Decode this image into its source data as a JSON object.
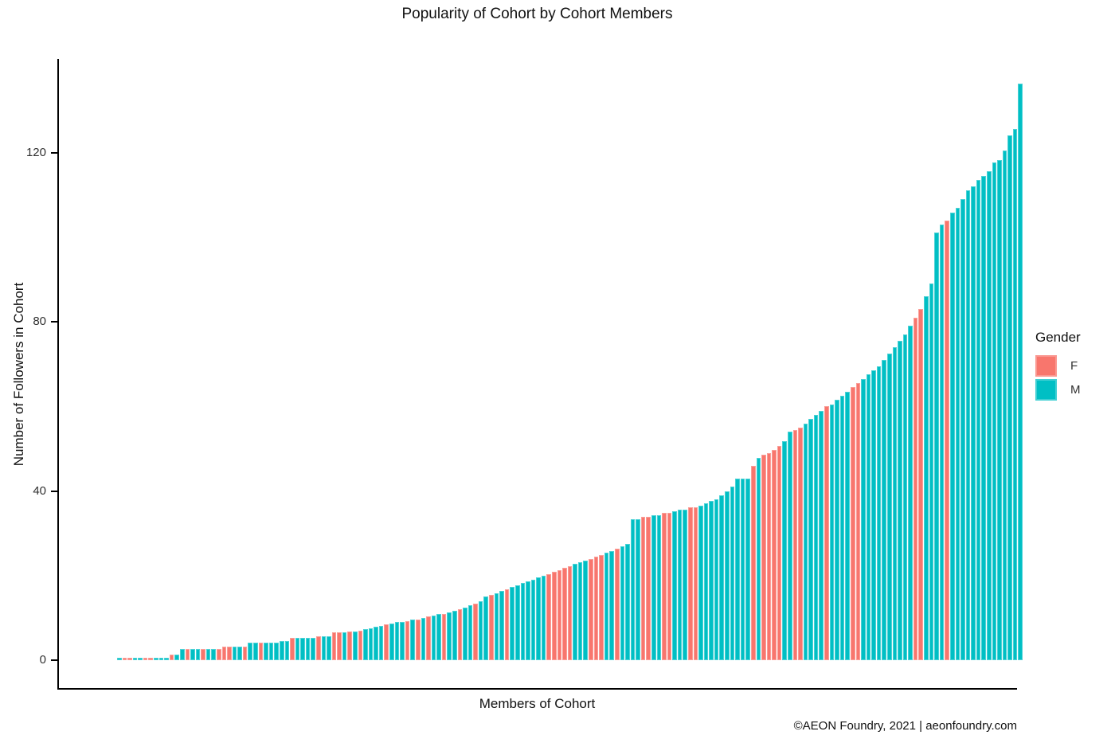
{
  "title": "Popularity of Cohort by Cohort Members",
  "caption": "©AEON Foundry, 2021 | aeonfoundry.com",
  "legend": {
    "title": "Gender",
    "items": [
      {
        "label": "F",
        "color": "#F8766D"
      },
      {
        "label": "M",
        "color": "#00BFC4"
      }
    ]
  },
  "chart_data": {
    "type": "bar",
    "title": "Popularity of Cohort by Cohort Members",
    "xlabel": "Members of Cohort",
    "ylabel": "Number of Followers in Cohort",
    "ylim": [
      0,
      140
    ],
    "yticks": [
      0,
      40,
      80,
      120
    ],
    "grid": false,
    "legend_position": "right",
    "sort": "ascending",
    "x_tick_labels": "none",
    "series_colors": {
      "F": "#F8766D",
      "M": "#00BFC4"
    },
    "members": [
      [
        0.6,
        "M"
      ],
      [
        0.6,
        "F"
      ],
      [
        0.6,
        "F"
      ],
      [
        0.6,
        "M"
      ],
      [
        0.6,
        "M"
      ],
      [
        0.6,
        "F"
      ],
      [
        0.6,
        "F"
      ],
      [
        0.6,
        "M"
      ],
      [
        0.6,
        "M"
      ],
      [
        0.6,
        "M"
      ],
      [
        1.3,
        "F"
      ],
      [
        1.3,
        "M"
      ],
      [
        2.6,
        "M"
      ],
      [
        2.6,
        "F"
      ],
      [
        2.6,
        "M"
      ],
      [
        2.6,
        "M"
      ],
      [
        2.6,
        "F"
      ],
      [
        2.6,
        "M"
      ],
      [
        2.6,
        "M"
      ],
      [
        2.6,
        "F"
      ],
      [
        3.2,
        "F"
      ],
      [
        3.2,
        "F"
      ],
      [
        3.2,
        "M"
      ],
      [
        3.2,
        "M"
      ],
      [
        3.2,
        "F"
      ],
      [
        4.2,
        "M"
      ],
      [
        4.2,
        "M"
      ],
      [
        4.2,
        "F"
      ],
      [
        4.2,
        "M"
      ],
      [
        4.2,
        "M"
      ],
      [
        4.2,
        "M"
      ],
      [
        4.5,
        "M"
      ],
      [
        4.5,
        "M"
      ],
      [
        5.3,
        "F"
      ],
      [
        5.3,
        "M"
      ],
      [
        5.3,
        "M"
      ],
      [
        5.3,
        "M"
      ],
      [
        5.3,
        "M"
      ],
      [
        5.6,
        "F"
      ],
      [
        5.6,
        "M"
      ],
      [
        5.6,
        "M"
      ],
      [
        6.6,
        "F"
      ],
      [
        6.6,
        "F"
      ],
      [
        6.6,
        "M"
      ],
      [
        6.8,
        "F"
      ],
      [
        6.8,
        "M"
      ],
      [
        7.0,
        "F"
      ],
      [
        7.3,
        "M"
      ],
      [
        7.6,
        "M"
      ],
      [
        7.9,
        "M"
      ],
      [
        8.1,
        "M"
      ],
      [
        8.4,
        "F"
      ],
      [
        8.7,
        "M"
      ],
      [
        9.0,
        "M"
      ],
      [
        9.0,
        "M"
      ],
      [
        9.3,
        "F"
      ],
      [
        9.6,
        "M"
      ],
      [
        9.6,
        "F"
      ],
      [
        10.0,
        "M"
      ],
      [
        10.3,
        "F"
      ],
      [
        10.6,
        "M"
      ],
      [
        11.0,
        "M"
      ],
      [
        11.0,
        "F"
      ],
      [
        11.3,
        "M"
      ],
      [
        11.6,
        "M"
      ],
      [
        12.0,
        "F"
      ],
      [
        12.5,
        "M"
      ],
      [
        13.0,
        "M"
      ],
      [
        13.4,
        "F"
      ],
      [
        14.0,
        "M"
      ],
      [
        15.0,
        "M"
      ],
      [
        15.5,
        "F"
      ],
      [
        15.9,
        "M"
      ],
      [
        16.4,
        "M"
      ],
      [
        16.8,
        "F"
      ],
      [
        17.3,
        "M"
      ],
      [
        17.7,
        "M"
      ],
      [
        18.2,
        "M"
      ],
      [
        18.6,
        "M"
      ],
      [
        19.1,
        "M"
      ],
      [
        19.5,
        "M"
      ],
      [
        20.0,
        "M"
      ],
      [
        20.4,
        "F"
      ],
      [
        20.9,
        "F"
      ],
      [
        21.3,
        "F"
      ],
      [
        21.8,
        "F"
      ],
      [
        22.2,
        "F"
      ],
      [
        22.7,
        "M"
      ],
      [
        23.1,
        "M"
      ],
      [
        23.6,
        "M"
      ],
      [
        24.0,
        "F"
      ],
      [
        24.5,
        "F"
      ],
      [
        24.9,
        "F"
      ],
      [
        25.4,
        "M"
      ],
      [
        25.8,
        "M"
      ],
      [
        26.3,
        "F"
      ],
      [
        26.9,
        "M"
      ],
      [
        27.5,
        "M"
      ],
      [
        33.4,
        "M"
      ],
      [
        33.4,
        "M"
      ],
      [
        33.8,
        "F"
      ],
      [
        33.8,
        "F"
      ],
      [
        34.2,
        "M"
      ],
      [
        34.2,
        "M"
      ],
      [
        34.8,
        "F"
      ],
      [
        34.8,
        "F"
      ],
      [
        35.2,
        "M"
      ],
      [
        35.6,
        "M"
      ],
      [
        35.6,
        "M"
      ],
      [
        36.1,
        "F"
      ],
      [
        36.1,
        "F"
      ],
      [
        36.6,
        "M"
      ],
      [
        37.1,
        "M"
      ],
      [
        37.6,
        "M"
      ],
      [
        38.1,
        "M"
      ],
      [
        39.0,
        "M"
      ],
      [
        40.0,
        "M"
      ],
      [
        41.0,
        "M"
      ],
      [
        43.0,
        "M"
      ],
      [
        43.0,
        "M"
      ],
      [
        43.0,
        "M"
      ],
      [
        46.0,
        "F"
      ],
      [
        47.9,
        "M"
      ],
      [
        48.6,
        "F"
      ],
      [
        48.9,
        "F"
      ],
      [
        49.7,
        "F"
      ],
      [
        50.6,
        "F"
      ],
      [
        51.7,
        "M"
      ],
      [
        54.0,
        "M"
      ],
      [
        54.5,
        "F"
      ],
      [
        55.0,
        "F"
      ],
      [
        56.0,
        "M"
      ],
      [
        57.0,
        "M"
      ],
      [
        58.0,
        "M"
      ],
      [
        59.0,
        "M"
      ],
      [
        60.0,
        "F"
      ],
      [
        60.5,
        "M"
      ],
      [
        61.5,
        "M"
      ],
      [
        62.5,
        "M"
      ],
      [
        63.5,
        "M"
      ],
      [
        64.5,
        "F"
      ],
      [
        65.5,
        "F"
      ],
      [
        66.5,
        "M"
      ],
      [
        67.5,
        "M"
      ],
      [
        68.5,
        "M"
      ],
      [
        69.5,
        "M"
      ],
      [
        71.0,
        "M"
      ],
      [
        72.5,
        "M"
      ],
      [
        74.0,
        "M"
      ],
      [
        75.5,
        "M"
      ],
      [
        77.0,
        "M"
      ],
      [
        79.0,
        "M"
      ],
      [
        81.0,
        "F"
      ],
      [
        83.0,
        "F"
      ],
      [
        86.0,
        "M"
      ],
      [
        89.0,
        "M"
      ],
      [
        101.0,
        "M"
      ],
      [
        103.0,
        "M"
      ],
      [
        104.0,
        "F"
      ],
      [
        105.8,
        "M"
      ],
      [
        107.0,
        "M"
      ],
      [
        109.0,
        "M"
      ],
      [
        111.0,
        "M"
      ],
      [
        112.0,
        "M"
      ],
      [
        113.5,
        "M"
      ],
      [
        114.5,
        "M"
      ],
      [
        115.5,
        "M"
      ],
      [
        117.7,
        "M"
      ],
      [
        118.3,
        "M"
      ],
      [
        120.5,
        "M"
      ],
      [
        124.0,
        "M"
      ],
      [
        125.6,
        "M"
      ],
      [
        136.2,
        "M"
      ]
    ]
  }
}
